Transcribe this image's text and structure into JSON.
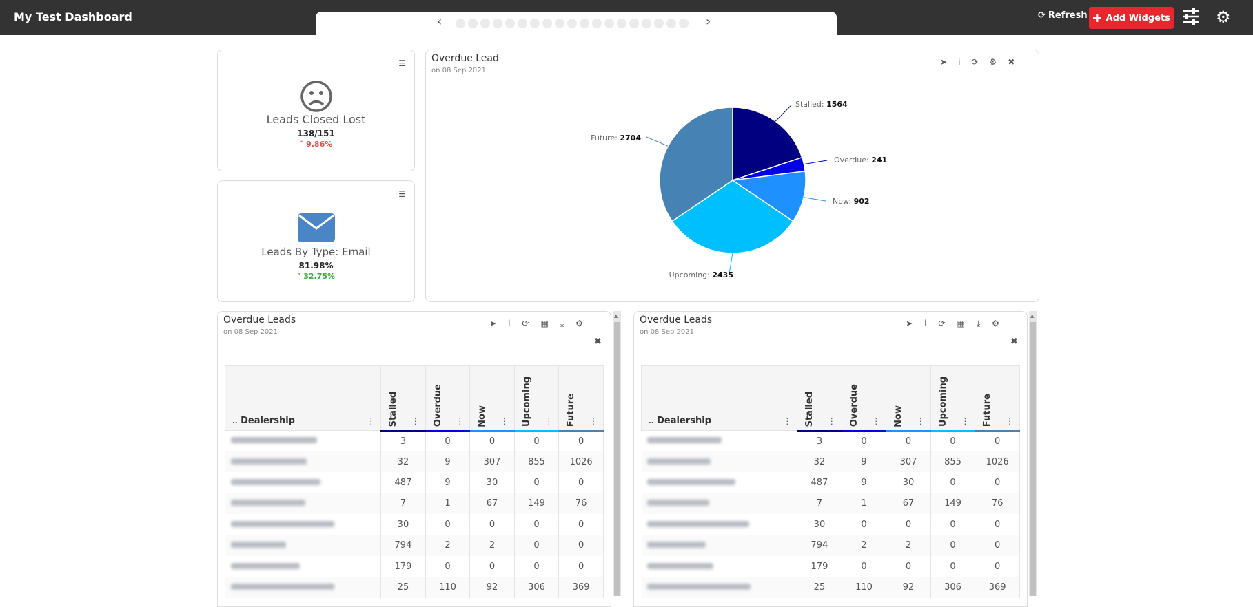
{
  "header": {
    "title": "My Test Dashboard",
    "refresh_label": "Refresh",
    "add_widgets_label": "Add Widgets",
    "carousel_dot_count": 19
  },
  "kpi_cards": [
    {
      "label": "Leads Closed Lost",
      "value": "138/151",
      "delta": "9.86%",
      "delta_color": "#e84d4d",
      "icon": "frown-icon"
    },
    {
      "label": "Leads By Type: Email",
      "value": "81.98%",
      "delta": "32.75%",
      "delta_color": "#3aaa3a",
      "icon": "envelope-icon"
    }
  ],
  "pie_widget": {
    "title": "Overdue Lead",
    "subtitle": "on 08 Sep 2021"
  },
  "chart_data": {
    "type": "pie",
    "slices": [
      {
        "name": "Stalled",
        "value": 1564,
        "color": "#000080"
      },
      {
        "name": "Overdue",
        "value": 241,
        "color": "#0000e6"
      },
      {
        "name": "Now",
        "value": 902,
        "color": "#1e90ff"
      },
      {
        "name": "Upcoming",
        "value": 2435,
        "color": "#00bfff"
      },
      {
        "name": "Future",
        "value": 2704,
        "color": "#4682b4"
      }
    ]
  },
  "tables": [
    {
      "title": "Overdue Leads",
      "subtitle": "on 08 Sep 2021"
    },
    {
      "title": "Overdue Leads",
      "subtitle": "on 08 Sep 2021"
    }
  ],
  "table": {
    "sort_indicator": "..",
    "headers": [
      "Dealership",
      "Stalled",
      "Overdue",
      "Now",
      "Upcoming",
      "Future"
    ],
    "header_colors": [
      "#000080",
      "#0000e6",
      "#1e90ff",
      "#00bfff",
      "#4682b4"
    ],
    "rows": [
      [
        3,
        0,
        0,
        0,
        0
      ],
      [
        32,
        9,
        307,
        855,
        1026
      ],
      [
        487,
        9,
        30,
        0,
        0
      ],
      [
        7,
        1,
        67,
        149,
        76
      ],
      [
        30,
        0,
        0,
        0,
        0
      ],
      [
        794,
        2,
        2,
        0,
        0
      ],
      [
        179,
        0,
        0,
        0,
        0
      ],
      [
        25,
        110,
        92,
        306,
        369
      ]
    ]
  }
}
